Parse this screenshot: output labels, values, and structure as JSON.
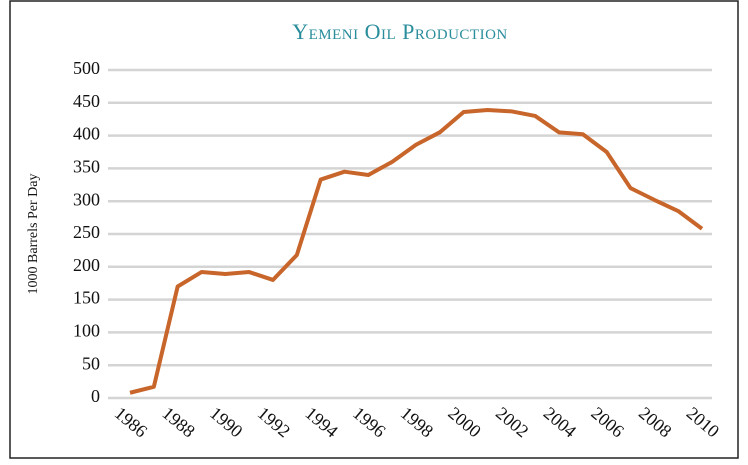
{
  "chart_data": {
    "type": "line",
    "title": "Yemeni Oil Production",
    "y_label": "1000 Barrels Per Day",
    "x": [
      1986,
      1987,
      1988,
      1989,
      1990,
      1991,
      1992,
      1993,
      1994,
      1995,
      1996,
      1997,
      1998,
      1999,
      2000,
      2001,
      2002,
      2003,
      2004,
      2005,
      2006,
      2007,
      2008,
      2009,
      2010
    ],
    "series": [
      {
        "name": "Oil Production",
        "color": "#c8652a",
        "values": [
          8,
          17,
          170,
          192,
          189,
          192,
          180,
          218,
          333,
          345,
          340,
          360,
          386,
          405,
          436,
          439,
          437,
          430,
          405,
          402,
          375,
          320,
          302,
          285,
          258
        ]
      }
    ],
    "xlim": [
      1986,
      2010
    ],
    "xticks": [
      1986,
      1988,
      1990,
      1992,
      1994,
      1996,
      1998,
      2000,
      2002,
      2004,
      2006,
      2008,
      2010
    ],
    "ylim": [
      0,
      500
    ],
    "yticks": [
      0,
      50,
      100,
      150,
      200,
      250,
      300,
      350,
      400,
      450,
      500
    ],
    "grid": true
  }
}
